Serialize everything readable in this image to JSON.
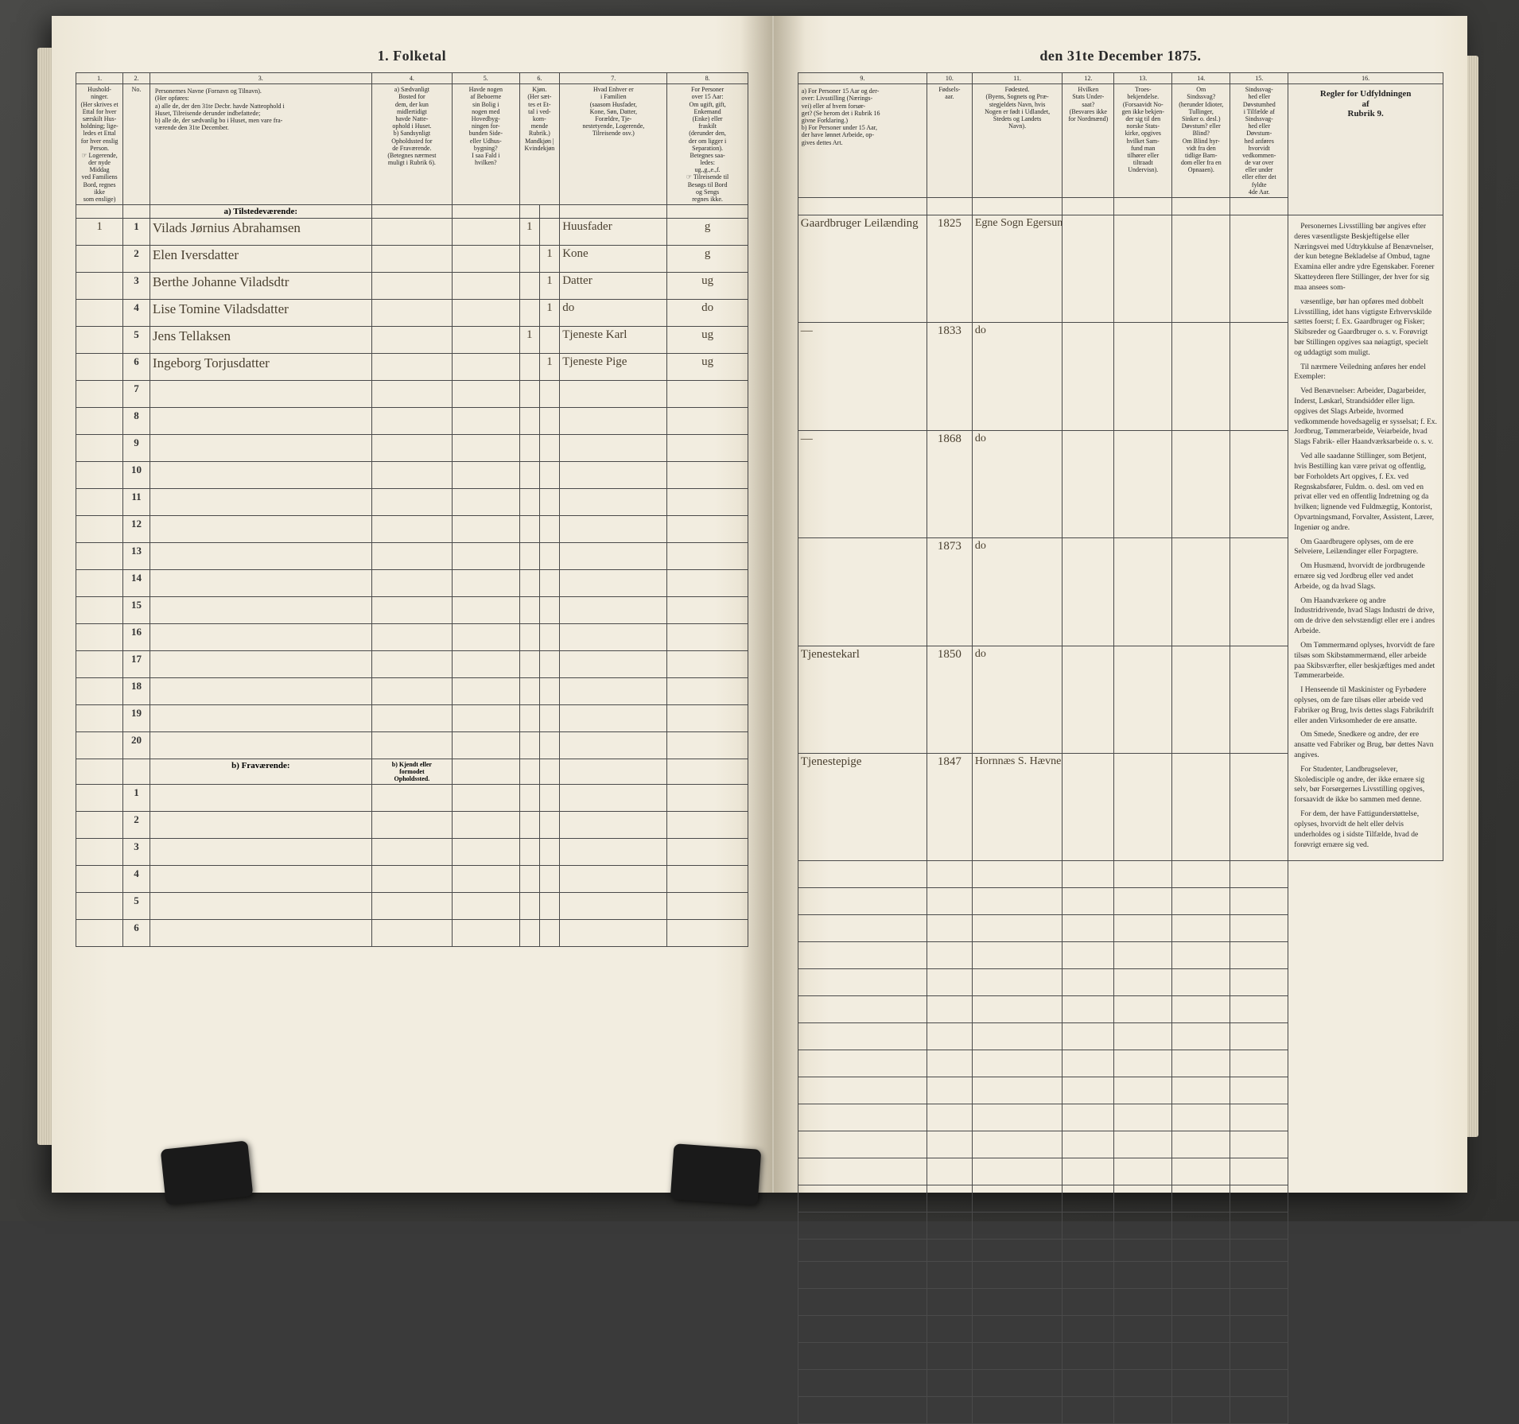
{
  "title_left": "1. Folketal",
  "title_right": "den 31te December 1875.",
  "left_colnums": [
    "1.",
    "2.",
    "3.",
    "4.",
    "5.",
    "6.",
    "7.",
    "8."
  ],
  "right_colnums": [
    "9.",
    "10.",
    "11.",
    "12.",
    "13.",
    "14.",
    "15.",
    "16."
  ],
  "left_headers": [
    "Hushold-\nninger.\n(Her skrives et\nEttal for hver\nsærskilt Hus-\nholdning; lige-\nledes et Ettal\nfor hver enslig\nPerson.\n☞ Logerende,\nder nyde Middag\nved Familiens\nBord, regnes ikke\nsom enslige)",
    "No.",
    "Personernes Navne (Fornavn og Tilnavn).\n(Her opføres:\na) alle de, der den 31te Decbr. havde Natteophold i\nHuset, Tilreisende derunder indbefattede;\nb) alle de, der sædvanlig bo i Huset, men vare fra-\nværende den 31te December.",
    "a) Sædvanligt\nBosted for\ndem, der kun\nmidlertidigt\nhavde Natte-\nophold i Huset.\nb) Sandsynligt\nOpholdssted for\nde Fraværende.\n(Betegnes nærmest\nmuligt i Rubrik 6).",
    "Havde nogen\naf Beboerne\nsin Bolig i\nnogen med\nHovedbyg-\nningen for-\nbunden Side-\neller Udhus-\nbygning?\nI saa Fald i\nhvilken?",
    "Kjøn.\n(Her sæt-\ntes et Et-\ntal i ved-\nkom-\nmende\nRubrik.)\nMandkjøn | Kvindekjøn",
    "Hvad Enhver er\ni Familien\n(saasom Husfader,\nKone, Søn, Datter,\nForældre, Tje-\nnestetyende, Logerende,\nTilreisende osv.)",
    "For Personer\nover 15 Aar:\nOm ugift, gift,\nEnkemand\n(Enke) eller\nfraskilt\n(derunder den,\nder om ligger i\nSeparation).\nBetegnes saa-\nledes:\nug.,g.,e.,f.\n☞ Tilreisende til\nBesøgs til Bord\nog Sengs\nregnes ikke."
  ],
  "right_headers": [
    "a) For Personer 15 Aar og der-\nover: Livsstilling (Nærings-\nvei) eller af hvem forsør-\nget? (Se herom det i Rubrik 16\ngivne Forklaring.)\nb) For Personer under 15 Aar,\nder have lønnet Arbeide, op-\ngives dettes Art.",
    "Fødsels-\naar.",
    "Fødested.\n(Byens, Sognets og Præ-\nstegjeldets Navn, hvis\nNogen er født i Udlandet,\nStedets og Landets\nNavn).",
    "Hvilken\nStats Under-\nsaat?\n(Besvares ikke\nfor Nordmænd)",
    "Troes-\nbekjendelse.\n(Forsaavidt No-\ngen ikke bekjen-\nder sig til den\nnorske Stats-\nkirke, opgives\nhvilket Sam-\nfund man\ntilhører eller\ntiltraadt\nUndervisn).",
    "Om\nSindssvag?\n(herunder Idioter,\nTullinger,\nSinker o. desl.)\nDøvstum? eller\nBlind?\nOm Blind hyr-\nvidt fra den\ntidlige Barn-\ndom eller fra en\nOpnaaen).",
    "Sindssvag-\nhed eller\nDøvstumhed\ni Tilfælde af\nSindssvag-\nhed eller\nDøvstum-\nhed anføres\nhvorvidt\nvedkommen-\nde var over\neller under\neller efter det\nfyldte\n4de Aar.",
    "Regler for Udfyldningen\naf\nRubrik 9."
  ],
  "section_a": "a) Tilstedeværende:",
  "section_b": "b) Fraværende:",
  "section_b_aux": "b) Kjendt eller\nformodet\nOpholdssted.",
  "rows": [
    {
      "n": "1",
      "hh": "1",
      "name": "Vilads Jørnius Abrahamsen",
      "c4": "",
      "c5": "",
      "sex": "1",
      "rel": "Huusfader",
      "civ": "g",
      "occ": "Gaardbruger Leilænding",
      "year": "1825",
      "birthplace": "Egne Sogn Egersunds P."
    },
    {
      "n": "2",
      "hh": "",
      "name": "Elen Iversdatter",
      "c4": "",
      "c5": "",
      "sex": " 1",
      "rel": "Kone",
      "civ": "g",
      "occ": "—",
      "year": "1833",
      "birthplace": "do"
    },
    {
      "n": "3",
      "hh": "",
      "name": "Berthe Johanne Viladsdtr",
      "c4": "",
      "c5": "",
      "sex": " 1",
      "rel": "Datter",
      "civ": "ug",
      "occ": "—",
      "year": "1868",
      "birthplace": "do"
    },
    {
      "n": "4",
      "hh": "",
      "name": "Lise Tomine Viladsdatter",
      "c4": "",
      "c5": "",
      "sex": " 1",
      "rel": "do",
      "civ": "do",
      "occ": "",
      "year": "1873",
      "birthplace": "do"
    },
    {
      "n": "5",
      "hh": "",
      "name": "Jens Tellaksen",
      "c4": "",
      "c5": "",
      "sex": "1",
      "rel": "Tjeneste Karl",
      "civ": "ug",
      "occ": "Tjenestekarl",
      "year": "1850",
      "birthplace": "do"
    },
    {
      "n": "6",
      "hh": "",
      "name": "Ingeborg Torjusdatter",
      "c4": "",
      "c5": "",
      "sex": " 1",
      "rel": "Tjeneste Pige",
      "civ": "ug",
      "occ": "Tjenestepige",
      "year": "1847",
      "birthplace": "Hornnæs S. Hævnesdal."
    }
  ],
  "empty_rows_a": [
    "7",
    "8",
    "9",
    "10",
    "11",
    "12",
    "13",
    "14",
    "15",
    "16",
    "17",
    "18",
    "19",
    "20"
  ],
  "empty_rows_b": [
    "1",
    "2",
    "3",
    "4",
    "5",
    "6"
  ],
  "rules": {
    "head": "Personernes Livsstilling bør angives efter deres væsentligste Beskjeftigelse eller Næringsvei med Udtrykkulse af Benævnelser, der kun betegne Bekladelse af Ombud, tagne Examina eller andre ydre Egenskaber. Forener Skatteyderen flere Stillinger, der hver for sig maa ansees som-",
    "paragraphs": [
      "væsentlige, bør han opføres med dobbelt Livsstilling, idet hans vigtigste Erhvervskilde sættes foerst; f. Ex. Gaardbruger og Fisker; Skibsreder og Gaardbruger o. s. v. Forøvrigt bør Stillingen opgives saa nøiagtigt, specielt og uddagtigt som muligt.",
      "Til nærmere Veiledning anføres her endel Exempler:",
      "Ved Benævnelser: Arbeider, Dagarbeider, Inderst, Løskarl, Strandsidder eller lign. opgives det Slags Arbeide, hvormed vedkommende hovedsagelig er sysselsat; f. Ex. Jordbrug, Tømmerarbeide, Veiarbeide, hvad Slags Fabrik- eller Haandværksarbeide o. s. v.",
      "Ved alle saadanne Stillinger, som Betjent, hvis Bestilling kan være privat og offentlig, bør Forholdets Art opgives, f. Ex. ved Regnskabsfører, Fuldm. o. desl. om ved en privat eller ved en offentlig Indretning og da hvilken; lignende ved Fuldmægtig, Kontorist, Opvartningsmand, Forvalter, Assistent, Lærer, Ingeniør og andre.",
      "Om Gaardbrugere oplyses, om de ere Selveiere, Leilændinger eller Forpagtere.",
      "Om Husmænd, hvorvidt de jordbrugende ernære sig ved Jordbrug eller ved andet Arbeide, og da hvad Slags.",
      "Om Haandværkere og andre Industridrivende, hvad Slags Industri de drive, om de drive den selvstændigt eller ere i andres Arbeide.",
      "Om Tømmermænd oplyses, hvorvidt de fare tilsøs som Skibstømmermænd, eller arbeide paa Skibsværfter, eller beskjæftiges med andet Tømmerarbeide.",
      "I Henseende til Maskinister og Fyrbødere oplyses, om de fare tilsøs eller arbeide ved Fabriker og Brug, hvis dettes slags Fabrikdrift eller anden Virksomheder de ere ansatte.",
      "Om Smede, Snedkere og andre, der ere ansatte ved Fabriker og Brug, bør dettes Navn angives.",
      "For Studenter, Landbrugselever, Skoledisciple og andre, der ikke ernære sig selv, bør Forsørgernes Livsstilling opgives, forsaavidt de ikke bo sammen med denne.",
      "For dem, der have Fattigunderstøttelse, oplyses, hvorvidt de helt eller delvis underholdes og i sidste Tilfælde, hvad de forøvrigt ernære sig ved."
    ]
  },
  "colors": {
    "paper": "#f2ede0",
    "ink": "#2a2a2a",
    "handwriting": "#4a4030",
    "rule": "#4a4a4a",
    "desk": "#3a3a3a"
  }
}
